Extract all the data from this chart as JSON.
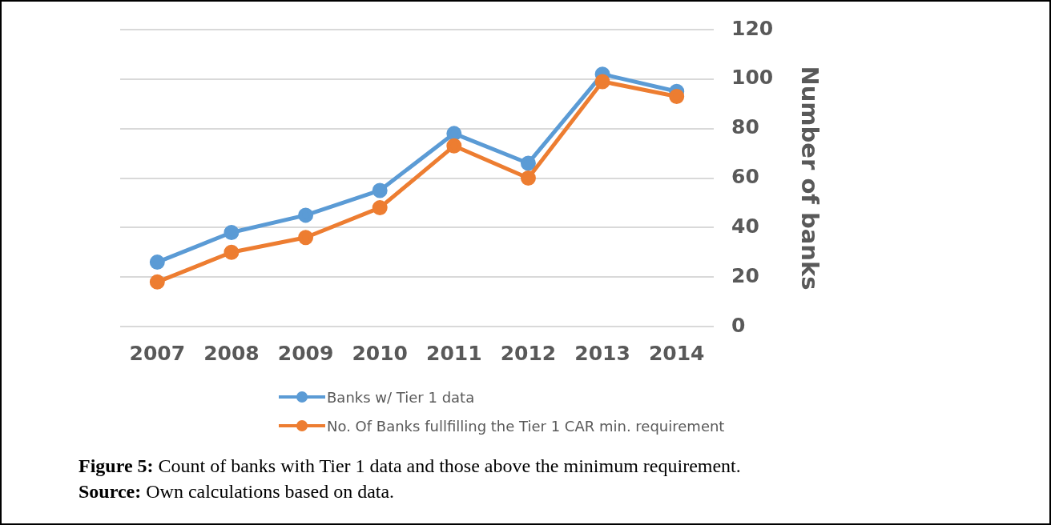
{
  "chart_data": {
    "type": "line",
    "categories": [
      "2007",
      "2008",
      "2009",
      "2010",
      "2011",
      "2012",
      "2013",
      "2014"
    ],
    "series": [
      {
        "name": "Banks w/ Tier 1 data",
        "color": "#5b9bd5",
        "values": [
          26,
          38,
          45,
          55,
          78,
          66,
          102,
          95
        ]
      },
      {
        "name": "No. Of Banks fullfilling the Tier 1 CAR min. requirement",
        "color": "#ed7d31",
        "values": [
          18,
          30,
          36,
          48,
          73,
          60,
          99,
          93
        ]
      }
    ],
    "ylabel": "Number of banks",
    "ylim": [
      0,
      120
    ],
    "yticks": [
      0,
      20,
      40,
      60,
      80,
      100,
      120
    ],
    "grid": "y",
    "legend": "bottom",
    "marker": "circle",
    "line_style": "solid",
    "annotations": [
      "Figure 5: Count of banks with Tier 1 data and those above the minimum requirement.",
      "Source: Own calculations based on data."
    ]
  }
}
